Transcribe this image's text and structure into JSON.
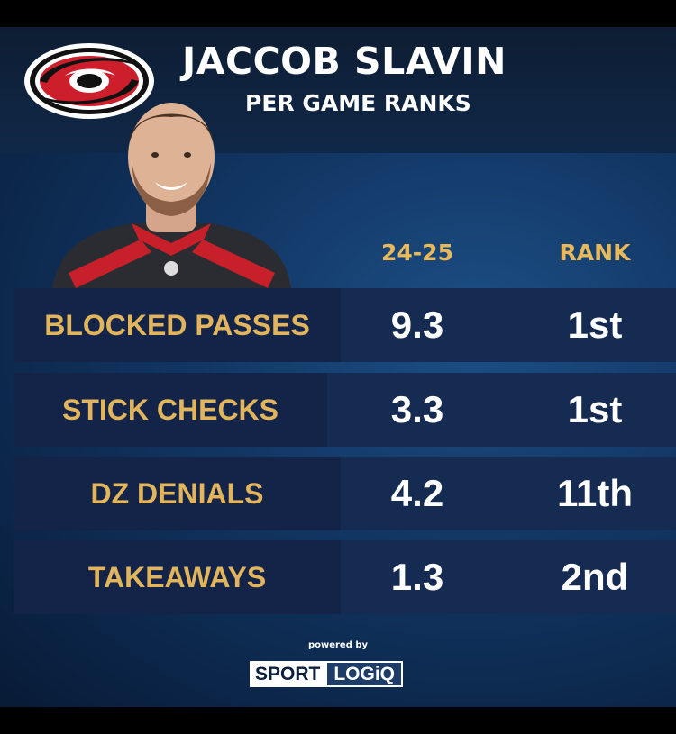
{
  "header": {
    "player_name": "JACCOB SLAVIN",
    "subtitle": "PER GAME RANKS"
  },
  "table": {
    "columns": [
      "24-25",
      "RANK"
    ],
    "rows": [
      {
        "label": "BLOCKED PASSES",
        "value": "9.3",
        "rank": "1st"
      },
      {
        "label": "STICK CHECKS",
        "value": "3.3",
        "rank": "1st"
      },
      {
        "label": "DZ DENIALS",
        "value": "4.2",
        "rank": "11th"
      },
      {
        "label": "TAKEAWAYS",
        "value": "1.3",
        "rank": "2nd"
      }
    ]
  },
  "footer": {
    "powered_by": "powered by",
    "brand_part1": "SPORT",
    "brand_part2": "LOGiQ"
  },
  "icons": {
    "team_logo": "hurricanes-logo-icon",
    "player_photo": "player-headshot"
  },
  "colors": {
    "accent_gold": "#e2b55c",
    "background": "#123765",
    "logo_red": "#cc1e2b"
  }
}
